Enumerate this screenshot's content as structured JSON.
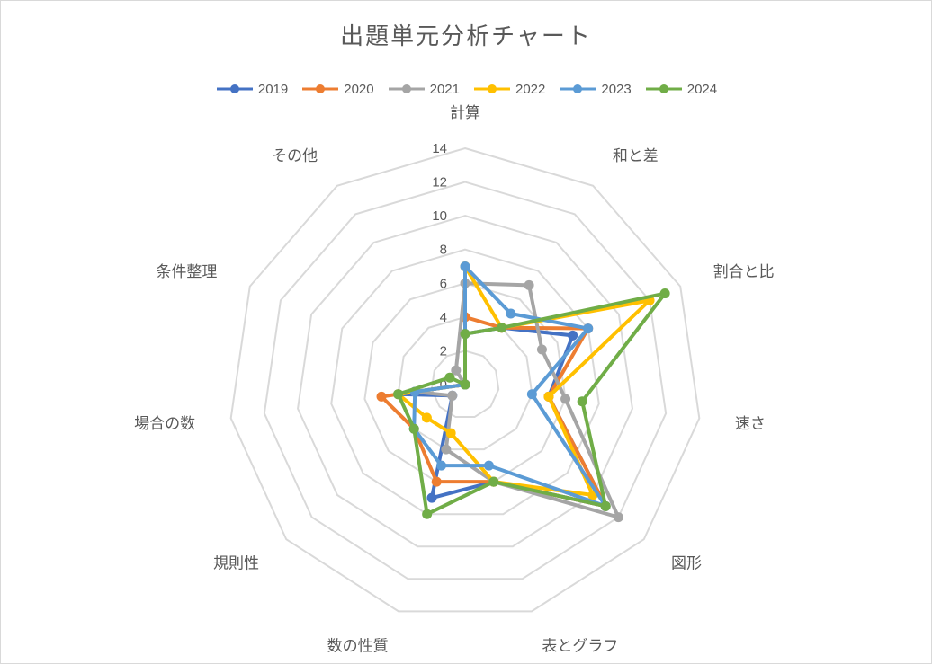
{
  "chart_data": {
    "type": "radar",
    "title": "出題単元分析チャート",
    "categories": [
      "計算",
      "和と差",
      "割合と比",
      "速さ",
      "図形",
      "表とグラフ",
      "数の性質",
      "規則性",
      "場合の数",
      "条件整理",
      "その他"
    ],
    "rlim": [
      0,
      14
    ],
    "ticks": [
      "0",
      "2",
      "4",
      "6",
      "8",
      "10",
      "12",
      "14"
    ],
    "grid": true,
    "legend_position": "top",
    "series": [
      {
        "name": "2019",
        "color": "#4472c4",
        "values": [
          3,
          4,
          7,
          5,
          11,
          6,
          7,
          1,
          4,
          0,
          0
        ]
      },
      {
        "name": "2020",
        "color": "#ed7d31",
        "values": [
          4,
          4,
          8,
          5,
          11,
          6,
          6,
          4,
          5,
          0,
          0
        ]
      },
      {
        "name": "2021",
        "color": "#a5a5a5",
        "values": [
          6,
          7,
          5,
          6,
          12,
          6,
          4,
          1,
          3,
          0,
          1
        ]
      },
      {
        "name": "2022",
        "color": "#ffc000",
        "values": [
          7,
          4,
          12,
          5,
          10,
          6,
          3,
          3,
          4,
          0,
          0
        ]
      },
      {
        "name": "2023",
        "color": "#5b9bd5",
        "values": [
          7,
          5,
          8,
          4,
          11,
          5,
          5,
          4,
          3,
          0,
          0
        ]
      },
      {
        "name": "2024",
        "color": "#70ad47",
        "values": [
          3,
          4,
          13,
          7,
          11,
          6,
          8,
          4,
          4,
          1,
          0
        ]
      }
    ]
  }
}
